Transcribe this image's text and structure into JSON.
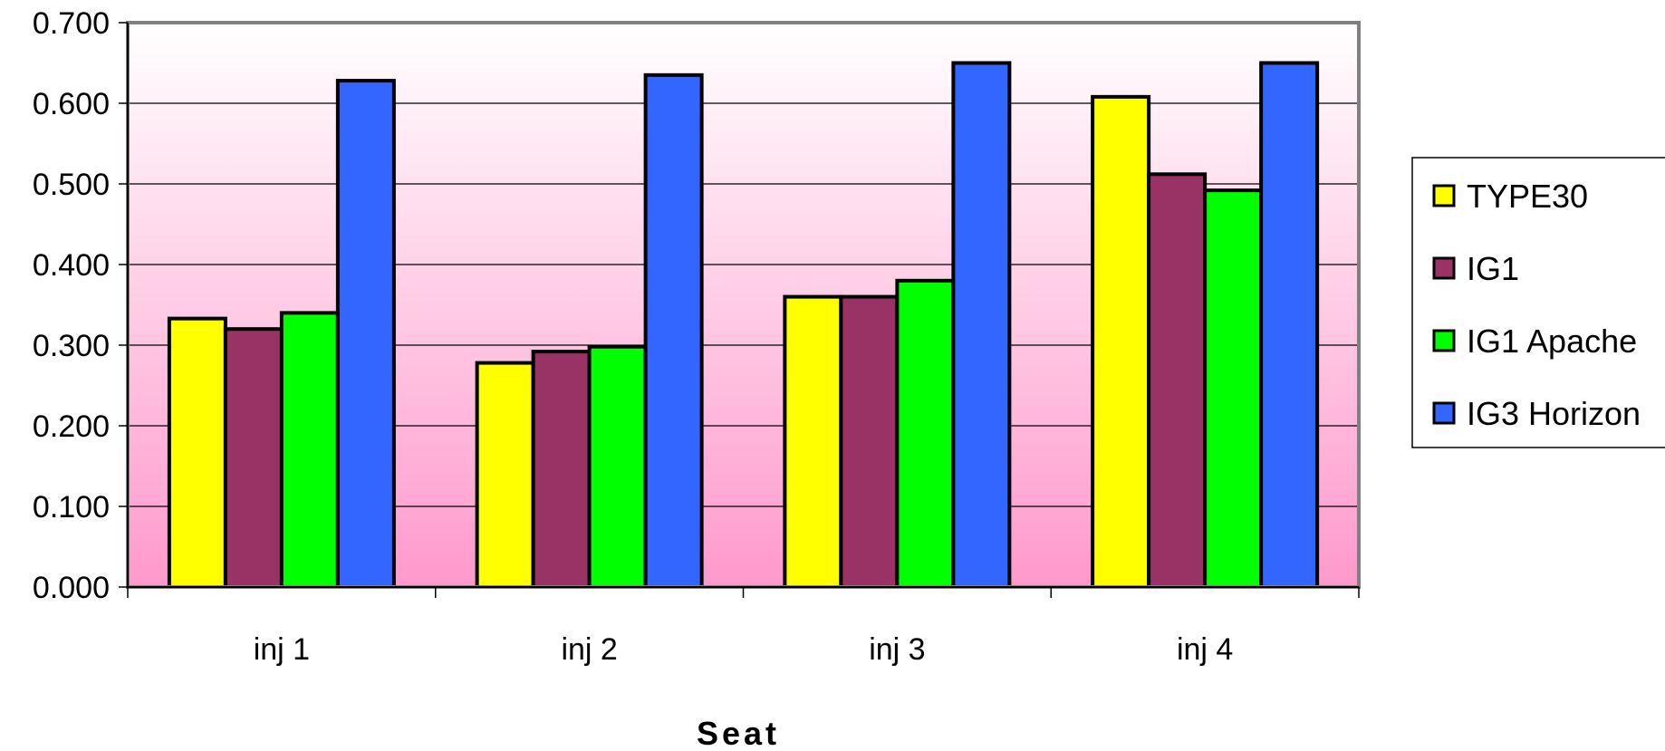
{
  "chart_data": {
    "type": "bar",
    "categories": [
      "inj 1",
      "inj 2",
      "inj 3",
      "inj 4"
    ],
    "series": [
      {
        "name": "TYPE30",
        "color": "#ffff00",
        "values": [
          0.333,
          0.278,
          0.36,
          0.608
        ]
      },
      {
        "name": "IG1",
        "color": "#993366",
        "values": [
          0.32,
          0.292,
          0.36,
          0.512
        ]
      },
      {
        "name": "IG1 Apache",
        "color": "#00ff00",
        "values": [
          0.34,
          0.298,
          0.38,
          0.492
        ]
      },
      {
        "name": "IG3 Horizon",
        "color": "#3366ff",
        "values": [
          0.628,
          0.635,
          0.65,
          0.65
        ]
      }
    ],
    "y_ticks": [
      "0.000",
      "0.100",
      "0.200",
      "0.300",
      "0.400",
      "0.500",
      "0.600",
      "0.700"
    ],
    "ylim": [
      0,
      0.7
    ],
    "xlabel": "Seat",
    "ylabel": "",
    "grid": true,
    "legend_position": "right",
    "plot_background": "gradient white to pink",
    "colors": {
      "gradient_top": "#ffffff",
      "gradient_bottom": "#ff99cc",
      "plot_border": "#808080"
    }
  }
}
